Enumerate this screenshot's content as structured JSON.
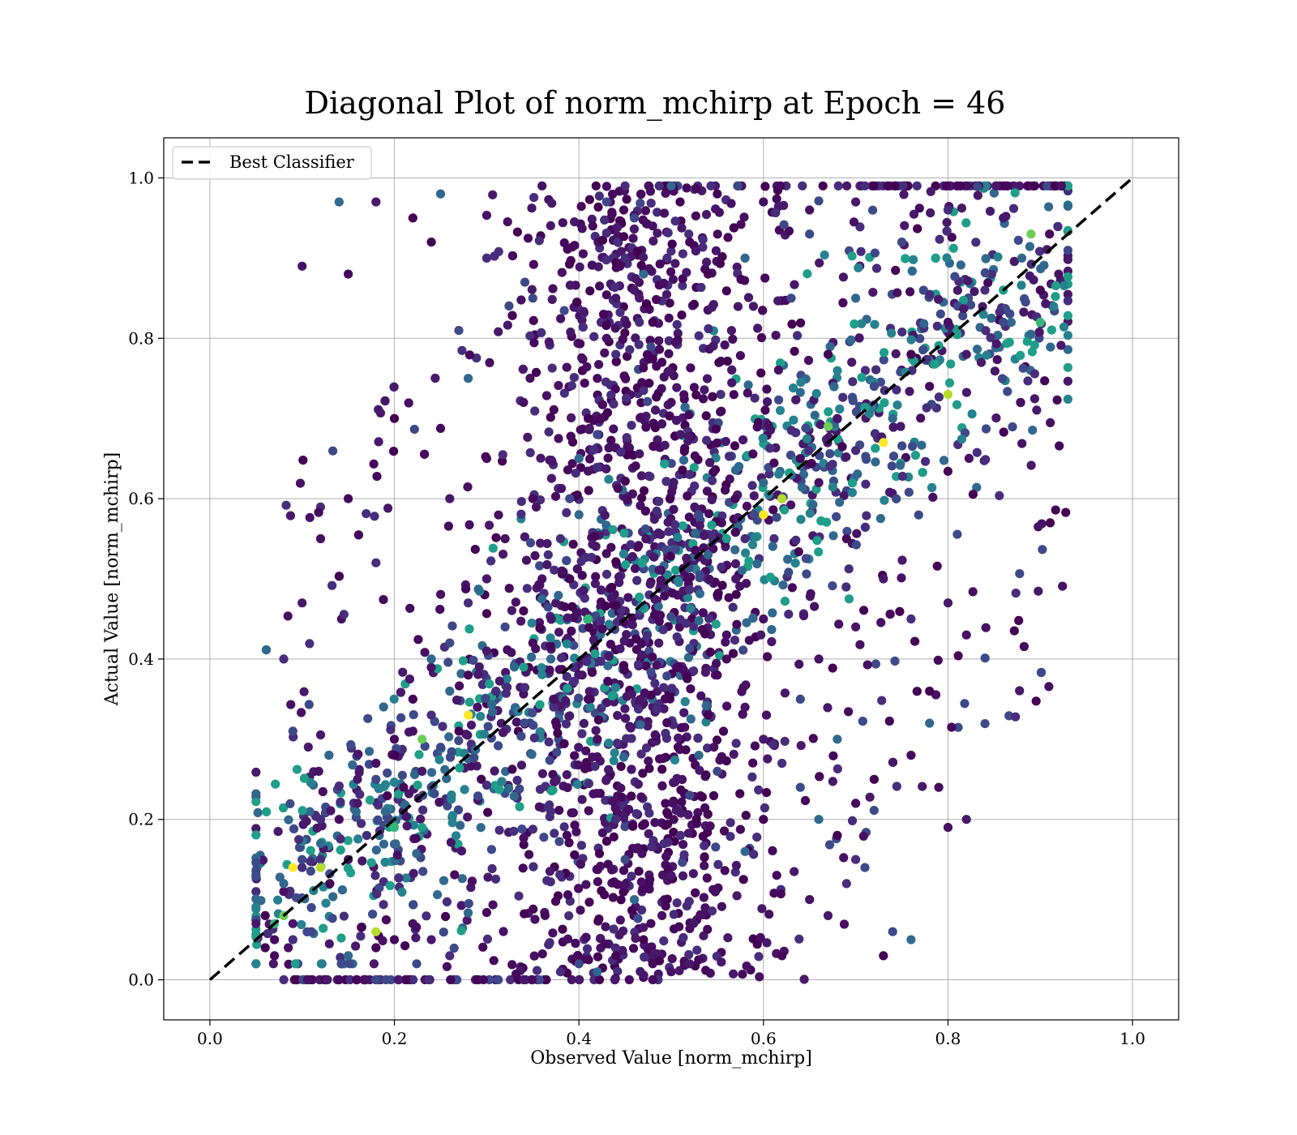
{
  "chart_data": {
    "type": "scatter",
    "title": "Diagonal Plot of norm_mchirp at Epoch = 46",
    "xlabel": "Observed Value [norm_mchirp]",
    "ylabel": "Actual Value [norm_mchirp]",
    "xlim": [
      -0.05,
      1.05
    ],
    "ylim": [
      -0.05,
      1.05
    ],
    "xticks": [
      "0.0",
      "0.2",
      "0.4",
      "0.6",
      "0.8",
      "1.0"
    ],
    "yticks": [
      "0.0",
      "0.2",
      "0.4",
      "0.6",
      "0.8",
      "1.0"
    ],
    "grid": true,
    "legend": {
      "placement": "upper-left",
      "entries": [
        "Best Classifier"
      ]
    },
    "colormap": "viridis",
    "colors": {
      "line": "#000000",
      "grid": "#b0b0b0",
      "dark": "#440154",
      "mid": "#31688e",
      "teal": "#21918c",
      "light": "#fde725"
    },
    "reference_line": {
      "label": "Best Classifier",
      "x": [
        0.0,
        1.0
      ],
      "y": [
        0.0,
        1.0
      ],
      "style": "dashed"
    },
    "series": [
      {
        "points": [
          [
            0.06,
            0.08
          ],
          [
            0.07,
            0.05
          ],
          [
            0.08,
            0.11
          ],
          [
            0.09,
            0.07
          ],
          [
            0.1,
            0.14
          ],
          [
            0.11,
            0.09
          ],
          [
            0.12,
            0.17
          ],
          [
            0.13,
            0.12
          ],
          [
            0.14,
            0.2
          ],
          [
            0.15,
            0.15
          ],
          [
            0.16,
            0.22
          ],
          [
            0.17,
            0.18
          ],
          [
            0.18,
            0.25
          ],
          [
            0.19,
            0.21
          ],
          [
            0.2,
            0.28
          ],
          [
            0.21,
            0.24
          ],
          [
            0.22,
            0.31
          ],
          [
            0.23,
            0.26
          ],
          [
            0.24,
            0.33
          ],
          [
            0.25,
            0.29
          ],
          [
            0.26,
            0.36
          ],
          [
            0.27,
            0.31
          ],
          [
            0.28,
            0.38
          ],
          [
            0.29,
            0.34
          ],
          [
            0.3,
            0.41
          ],
          [
            0.31,
            0.36
          ],
          [
            0.32,
            0.44
          ],
          [
            0.33,
            0.39
          ],
          [
            0.34,
            0.46
          ],
          [
            0.35,
            0.42
          ],
          [
            0.36,
            0.5
          ],
          [
            0.37,
            0.45
          ],
          [
            0.38,
            0.55
          ],
          [
            0.39,
            0.6
          ],
          [
            0.4,
            0.65
          ],
          [
            0.41,
            0.7
          ],
          [
            0.42,
            0.75
          ],
          [
            0.43,
            0.8
          ],
          [
            0.44,
            0.85
          ],
          [
            0.45,
            0.9
          ],
          [
            0.46,
            0.95
          ],
          [
            0.47,
            0.88
          ],
          [
            0.48,
            0.82
          ],
          [
            0.49,
            0.77
          ],
          [
            0.5,
            0.72
          ],
          [
            0.51,
            0.68
          ],
          [
            0.52,
            0.63
          ],
          [
            0.53,
            0.58
          ],
          [
            0.54,
            0.53
          ],
          [
            0.55,
            0.48
          ],
          [
            0.41,
            0.35
          ],
          [
            0.42,
            0.3
          ],
          [
            0.43,
            0.25
          ],
          [
            0.44,
            0.2
          ],
          [
            0.45,
            0.15
          ],
          [
            0.46,
            0.1
          ],
          [
            0.47,
            0.05
          ],
          [
            0.48,
            0.02
          ],
          [
            0.49,
            0.08
          ],
          [
            0.5,
            0.13
          ],
          [
            0.51,
            0.18
          ],
          [
            0.52,
            0.23
          ],
          [
            0.53,
            0.28
          ],
          [
            0.54,
            0.33
          ],
          [
            0.55,
            0.38
          ],
          [
            0.56,
            0.43
          ],
          [
            0.57,
            0.5
          ],
          [
            0.58,
            0.55
          ],
          [
            0.59,
            0.58
          ],
          [
            0.6,
            0.62
          ],
          [
            0.62,
            0.6
          ],
          [
            0.64,
            0.65
          ],
          [
            0.66,
            0.62
          ],
          [
            0.68,
            0.7
          ],
          [
            0.7,
            0.66
          ],
          [
            0.72,
            0.74
          ],
          [
            0.74,
            0.7
          ],
          [
            0.76,
            0.78
          ],
          [
            0.78,
            0.74
          ],
          [
            0.8,
            0.82
          ],
          [
            0.82,
            0.78
          ],
          [
            0.84,
            0.86
          ],
          [
            0.86,
            0.82
          ],
          [
            0.88,
            0.9
          ],
          [
            0.9,
            0.86
          ],
          [
            0.91,
            0.93
          ],
          [
            0.92,
            0.88
          ],
          [
            0.86,
            0.95
          ],
          [
            0.8,
            0.96
          ],
          [
            0.75,
            0.92
          ],
          [
            0.25,
            0.98
          ],
          [
            0.22,
            0.95
          ],
          [
            0.15,
            0.88
          ],
          [
            0.1,
            0.89
          ],
          [
            0.18,
            0.97
          ],
          [
            0.3,
            0.9
          ],
          [
            0.35,
            0.85
          ],
          [
            0.28,
            0.75
          ],
          [
            0.2,
            0.7
          ],
          [
            0.15,
            0.6
          ],
          [
            0.12,
            0.55
          ],
          [
            0.1,
            0.47
          ],
          [
            0.08,
            0.4
          ],
          [
            0.09,
            0.31
          ],
          [
            0.14,
            0.97
          ],
          [
            0.24,
            0.92
          ],
          [
            0.3,
            0.65
          ],
          [
            0.34,
            0.72
          ],
          [
            0.26,
            0.6
          ],
          [
            0.18,
            0.52
          ],
          [
            0.64,
            0.35
          ],
          [
            0.68,
            0.3
          ],
          [
            0.72,
            0.25
          ],
          [
            0.76,
            0.28
          ],
          [
            0.8,
            0.19
          ],
          [
            0.82,
            0.2
          ],
          [
            0.7,
            0.15
          ],
          [
            0.74,
            0.06
          ],
          [
            0.76,
            0.05
          ],
          [
            0.73,
            0.03
          ],
          [
            0.62,
            0.03
          ],
          [
            0.65,
            0.1
          ],
          [
            0.67,
            0.08
          ],
          [
            0.69,
            0.12
          ],
          [
            0.71,
            0.14
          ],
          [
            0.78,
            0.32
          ],
          [
            0.78,
            0.36
          ],
          [
            0.79,
            0.24
          ],
          [
            0.82,
            0.43
          ],
          [
            0.8,
            0.47
          ],
          [
            0.38,
            0.01
          ],
          [
            0.4,
            0.02
          ],
          [
            0.42,
            0.01
          ],
          [
            0.44,
            0.03
          ],
          [
            0.48,
            0.0
          ],
          [
            0.5,
            0.01
          ],
          [
            0.52,
            0.02
          ],
          [
            0.45,
            0.99
          ],
          [
            0.43,
            0.97
          ],
          [
            0.5,
            0.99
          ],
          [
            0.55,
            0.98
          ],
          [
            0.6,
            0.97
          ],
          [
            0.65,
            0.96
          ],
          [
            0.7,
            0.97
          ],
          [
            0.71,
            0.99
          ],
          [
            0.65,
            0.93
          ],
          [
            0.7,
            0.85
          ],
          [
            0.67,
            0.78
          ],
          [
            0.69,
            0.55
          ],
          [
            0.6,
            0.45
          ],
          [
            0.73,
            0.5
          ],
          [
            0.76,
            0.45
          ],
          [
            0.55,
            0.26
          ],
          [
            0.58,
            0.16
          ],
          [
            0.6,
            0.2
          ],
          [
            0.35,
            0.6
          ],
          [
            0.32,
            0.55
          ],
          [
            0.3,
            0.5
          ],
          [
            0.28,
            0.47
          ],
          [
            0.26,
            0.42
          ],
          [
            0.24,
            0.4
          ],
          [
            0.22,
            0.35
          ],
          [
            0.2,
            0.3
          ],
          [
            0.18,
            0.27
          ],
          [
            0.16,
            0.25
          ],
          [
            0.12,
            0.2
          ],
          [
            0.1,
            0.15
          ],
          [
            0.08,
            0.12
          ],
          [
            0.06,
            0.04
          ],
          [
            0.07,
            0.03
          ],
          [
            0.085,
            0.04
          ],
          [
            0.05,
            0.07
          ],
          [
            0.09,
            0.05
          ],
          [
            0.11,
            0.06
          ],
          [
            0.15,
            0.03
          ],
          [
            0.18,
            0.04
          ],
          [
            0.2,
            0.05
          ],
          [
            0.22,
            0.07
          ],
          [
            0.24,
            0.05
          ],
          [
            0.26,
            0.03
          ],
          [
            0.63,
            0.85
          ],
          [
            0.58,
            0.9
          ],
          [
            0.54,
            0.88
          ],
          [
            0.52,
            0.92
          ],
          [
            0.48,
            0.94
          ],
          [
            0.46,
            0.86
          ],
          [
            0.44,
            0.78
          ],
          [
            0.42,
            0.68
          ],
          [
            0.4,
            0.58
          ],
          [
            0.39,
            0.5
          ],
          [
            0.56,
            0.4
          ],
          [
            0.58,
            0.34
          ],
          [
            0.6,
            0.3
          ],
          [
            0.62,
            0.27
          ],
          [
            0.64,
            0.24
          ],
          [
            0.66,
            0.2
          ],
          [
            0.68,
            0.18
          ],
          [
            0.7,
            0.22
          ],
          [
            0.66,
            0.4
          ],
          [
            0.7,
            0.44
          ]
        ],
        "highlight_points": [
          [
            0.86,
            0.86
          ],
          [
            0.9,
            0.82
          ],
          [
            0.89,
            0.93
          ],
          [
            0.62,
            0.6
          ],
          [
            0.6,
            0.58
          ],
          [
            0.56,
            0.55
          ],
          [
            0.2,
            0.19
          ],
          [
            0.23,
            0.3
          ],
          [
            0.18,
            0.06
          ],
          [
            0.09,
            0.14
          ],
          [
            0.34,
            0.39
          ],
          [
            0.41,
            0.45
          ],
          [
            0.67,
            0.69
          ],
          [
            0.8,
            0.73
          ],
          [
            0.73,
            0.67
          ],
          [
            0.23,
            0.19
          ],
          [
            0.07,
            0.07
          ],
          [
            0.08,
            0.08
          ],
          [
            0.12,
            0.14
          ],
          [
            0.28,
            0.33
          ]
        ]
      }
    ]
  }
}
